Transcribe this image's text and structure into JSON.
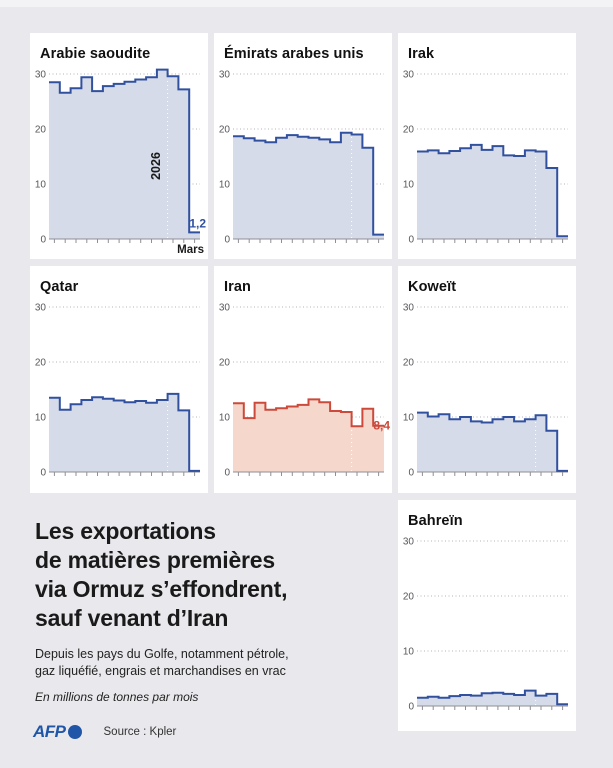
{
  "page": {
    "background": "#e9e9ed",
    "panel_background": "#ffffff"
  },
  "colors": {
    "blue_line": "#31519f",
    "blue_fill": "#d5dbe9",
    "red_line": "#cb4a3b",
    "red_fill": "#f6d7cb",
    "grid": "#b5b5ba",
    "axis": "#8f8f95",
    "tick_label": "#57575c",
    "title_text": "#1a1a1a",
    "afp_blue": "#2056a8"
  },
  "title_block": {
    "title": "Les exportations\nde matières premières\nvia Ormuz s’effondrent,\nsauf venant d’Iran",
    "subtitle": "Depuis les pays du Golfe, notamment pétrole,\ngaz liquéfié, engrais et marchandises en vrac",
    "unit_note": "En millions de tonnes par mois"
  },
  "footer": {
    "logo_text": "AFP",
    "source": "Source : Kpler"
  },
  "chart_data": {
    "type": "area",
    "subtype": "step-line",
    "unit": "millions de tonnes par mois",
    "x_period": "mensuel, se terminant en Mars 2026",
    "ylim": [
      0,
      30
    ],
    "yticks": [
      0,
      10,
      20,
      30
    ],
    "grid": "dotted",
    "year_divider_after_index": 11,
    "series": [
      {
        "name": "Arabie saoudite",
        "color": "blue",
        "values": [
          28.5,
          26.6,
          27.4,
          29.4,
          26.9,
          27.8,
          28.2,
          28.6,
          29.0,
          29.4,
          30.8,
          29.6,
          27.2,
          1.2
        ],
        "end_label": "1,2",
        "year_label": "2026",
        "x_axis_label": "Mars"
      },
      {
        "name": "Émirats arabes unis",
        "color": "blue",
        "values": [
          18.7,
          18.3,
          17.9,
          17.6,
          18.4,
          18.9,
          18.6,
          18.4,
          18.1,
          17.6,
          19.3,
          19.0,
          16.6,
          0.8
        ]
      },
      {
        "name": "Irak",
        "color": "blue",
        "values": [
          15.9,
          16.1,
          15.6,
          16.0,
          16.5,
          17.1,
          16.2,
          16.9,
          15.2,
          15.1,
          16.1,
          15.9,
          12.9,
          0.5
        ]
      },
      {
        "name": "Qatar",
        "color": "blue",
        "values": [
          13.5,
          11.3,
          12.3,
          13.1,
          13.6,
          13.3,
          13.0,
          12.7,
          12.9,
          12.6,
          13.1,
          14.2,
          11.2,
          0.2
        ]
      },
      {
        "name": "Iran",
        "color": "red",
        "values": [
          12.5,
          9.8,
          12.6,
          11.3,
          11.6,
          11.9,
          12.2,
          13.2,
          12.7,
          11.1,
          10.9,
          8.3,
          11.5,
          8.4
        ],
        "end_label": "8,4"
      },
      {
        "name": "Koweït",
        "color": "blue",
        "values": [
          10.8,
          10.1,
          10.5,
          9.6,
          10.0,
          9.2,
          9.0,
          9.6,
          10.0,
          9.2,
          9.6,
          10.3,
          7.5,
          0.2
        ]
      },
      {
        "name": "Bahreïn",
        "color": "blue",
        "values": [
          1.5,
          1.7,
          1.5,
          1.8,
          2.0,
          1.9,
          2.3,
          2.4,
          2.2,
          2.0,
          2.8,
          1.9,
          2.2,
          0.3
        ]
      }
    ]
  }
}
